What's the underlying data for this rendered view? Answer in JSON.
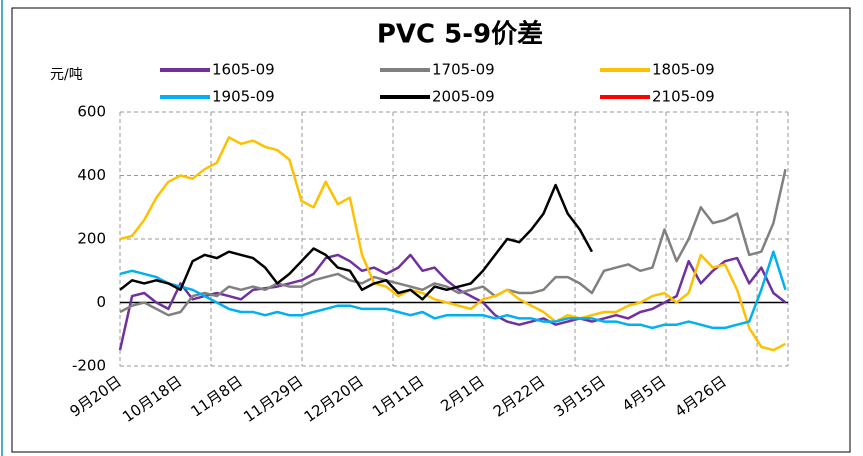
{
  "chart_data": {
    "type": "line",
    "title": "PVC 5-9价差",
    "y_label": "元/吨",
    "categories": [
      "9月20日",
      null,
      null,
      null,
      null,
      "10月18日",
      null,
      null,
      null,
      null,
      "11月8日",
      null,
      null,
      null,
      null,
      "11月29日",
      null,
      null,
      null,
      null,
      "12月20日",
      null,
      null,
      null,
      null,
      "1月11日",
      null,
      null,
      null,
      null,
      "2月1日",
      null,
      null,
      null,
      null,
      "2月22日",
      null,
      null,
      null,
      null,
      "3月15日",
      null,
      null,
      null,
      null,
      "4月5日",
      null,
      null,
      null,
      null,
      "4月26日",
      null,
      null,
      null,
      null,
      null
    ],
    "series": [
      {
        "name": "1605-09",
        "color": "#7030a0",
        "values": [
          -150,
          20,
          30,
          0,
          -20,
          60,
          10,
          20,
          30,
          20,
          10,
          40,
          45,
          50,
          60,
          70,
          90,
          140,
          150,
          130,
          100,
          110,
          90,
          110,
          150,
          100,
          110,
          70,
          40,
          20,
          0,
          -40,
          -60,
          -70,
          -60,
          -50,
          -70,
          -60,
          -50,
          -60,
          -50,
          -40,
          -50,
          -30,
          -20,
          0,
          20,
          130,
          60,
          100,
          130,
          140,
          60,
          110,
          30,
          0
        ]
      },
      {
        "name": "1705-09",
        "color": "#808080",
        "values": [
          -30,
          -10,
          0,
          -20,
          -40,
          -30,
          20,
          30,
          20,
          50,
          40,
          50,
          40,
          60,
          50,
          50,
          70,
          80,
          90,
          70,
          60,
          80,
          70,
          60,
          50,
          40,
          60,
          50,
          30,
          40,
          50,
          20,
          40,
          30,
          30,
          40,
          80,
          80,
          60,
          30,
          100,
          110,
          120,
          100,
          110,
          230,
          130,
          200,
          300,
          250,
          260,
          280,
          150,
          160,
          250,
          420
        ]
      },
      {
        "name": "1805-09",
        "color": "#ffc000",
        "values": [
          200,
          210,
          260,
          330,
          380,
          400,
          390,
          420,
          440,
          520,
          500,
          510,
          490,
          480,
          450,
          320,
          300,
          380,
          310,
          330,
          150,
          60,
          50,
          20,
          40,
          30,
          10,
          0,
          -10,
          -20,
          10,
          20,
          40,
          10,
          -10,
          -30,
          -60,
          -40,
          -50,
          -40,
          -30,
          -30,
          -10,
          0,
          20,
          30,
          0,
          30,
          150,
          110,
          120,
          40,
          -80,
          -140,
          -150,
          -130
        ]
      },
      {
        "name": "1905-09",
        "color": "#00b0f0",
        "values": [
          90,
          100,
          90,
          80,
          60,
          50,
          40,
          20,
          0,
          -20,
          -30,
          -30,
          -40,
          -30,
          -40,
          -40,
          -30,
          -20,
          -10,
          -10,
          -20,
          -20,
          -20,
          -30,
          -40,
          -30,
          -50,
          -40,
          -40,
          -40,
          -40,
          -50,
          -40,
          -50,
          -50,
          -60,
          -60,
          -50,
          -50,
          -50,
          -60,
          -60,
          -70,
          -70,
          -80,
          -70,
          -70,
          -60,
          -70,
          -80,
          -80,
          -70,
          -60,
          40,
          160,
          40
        ]
      },
      {
        "name": "2005-09",
        "color": "#000000",
        "values": [
          40,
          70,
          60,
          70,
          60,
          40,
          130,
          150,
          140,
          160,
          150,
          140,
          110,
          60,
          90,
          130,
          170,
          150,
          110,
          100,
          40,
          60,
          70,
          30,
          40,
          10,
          50,
          40,
          50,
          60,
          100,
          150,
          200,
          190,
          230,
          280,
          370,
          280,
          230,
          160,
          null,
          null,
          null,
          null,
          null,
          null,
          null,
          null,
          null,
          null,
          null,
          null,
          null,
          null,
          null,
          null
        ]
      },
      {
        "name": "2105-09",
        "color": "#ff0000",
        "values": [
          null,
          null,
          null,
          null,
          null,
          null,
          null,
          null,
          null,
          null,
          null,
          null,
          null,
          null,
          null,
          null,
          null,
          null,
          null,
          null,
          null,
          null,
          null,
          null,
          null,
          null,
          null,
          null,
          null,
          null,
          null,
          null,
          null,
          null,
          null,
          null,
          null,
          null,
          null,
          null,
          null,
          null,
          null,
          null,
          null,
          null,
          null,
          null,
          null,
          null,
          null,
          null,
          null,
          null,
          null,
          null
        ]
      }
    ],
    "ylim": [
      -200,
      600
    ],
    "yticks": [
      -200,
      0,
      200,
      400,
      600
    ],
    "grid": true
  }
}
